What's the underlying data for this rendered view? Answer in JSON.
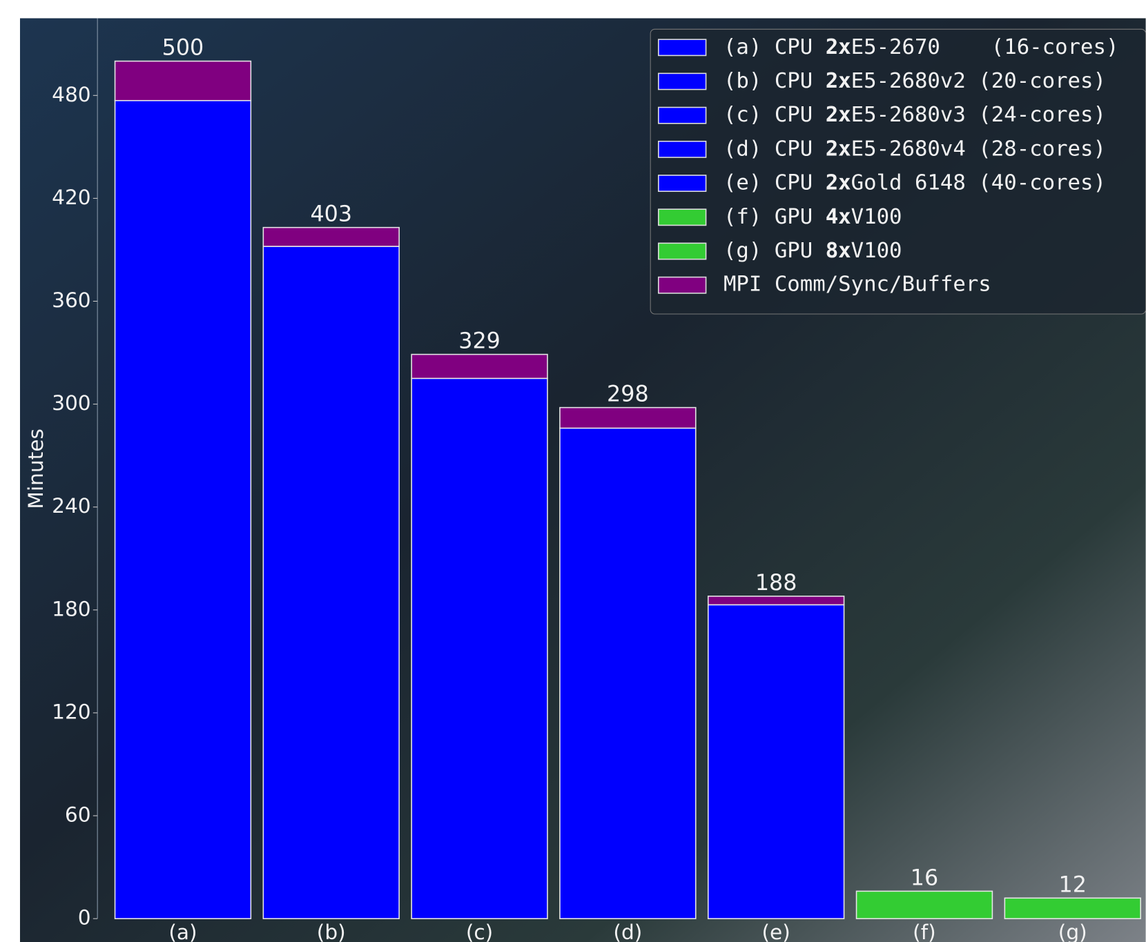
{
  "chart_data": {
    "type": "stacked-bar",
    "y_label": "Minutes",
    "categories": [
      "(a)",
      "(b)",
      "(c)",
      "(d)",
      "(e)",
      "(f)",
      "(g)"
    ],
    "series": [
      {
        "colors": [
          "#0000ff",
          "#0000ff",
          "#0000ff",
          "#0000ff",
          "#0000ff",
          "#33cc33",
          "#33cc33"
        ],
        "values": [
          477,
          392,
          315,
          286,
          183,
          16,
          12
        ]
      },
      {
        "name": "MPI Comm/Sync/Buffers",
        "color": "#800080",
        "values": [
          23,
          11,
          14,
          12,
          5,
          0,
          0
        ]
      }
    ],
    "total_labels": [
      "500",
      "403",
      "329",
      "298",
      "188",
      "16",
      "12"
    ],
    "legend_entries": [
      {
        "lead": "(a) CPU ",
        "bold": "2x",
        "rest": "E5-2670    (16-cores)"
      },
      {
        "lead": "(b) CPU ",
        "bold": "2x",
        "rest": "E5-2680v2 (20-cores)"
      },
      {
        "lead": "(c) CPU ",
        "bold": "2x",
        "rest": "E5-2680v3 (24-cores)"
      },
      {
        "lead": "(d) CPU ",
        "bold": "2x",
        "rest": "E5-2680v4 (28-cores)"
      },
      {
        "lead": "(e) CPU ",
        "bold": "2x",
        "rest": "Gold 6148 (40-cores)"
      },
      {
        "lead": "(f) GPU ",
        "bold": "4x",
        "rest": "V100"
      },
      {
        "lead": "(g) GPU ",
        "bold": "8x",
        "rest": "V100"
      }
    ],
    "legend_position": "upper right",
    "ylim": [
      0,
      525
    ],
    "yticks": [
      0,
      60,
      120,
      180,
      240,
      300,
      360,
      420,
      480
    ]
  }
}
